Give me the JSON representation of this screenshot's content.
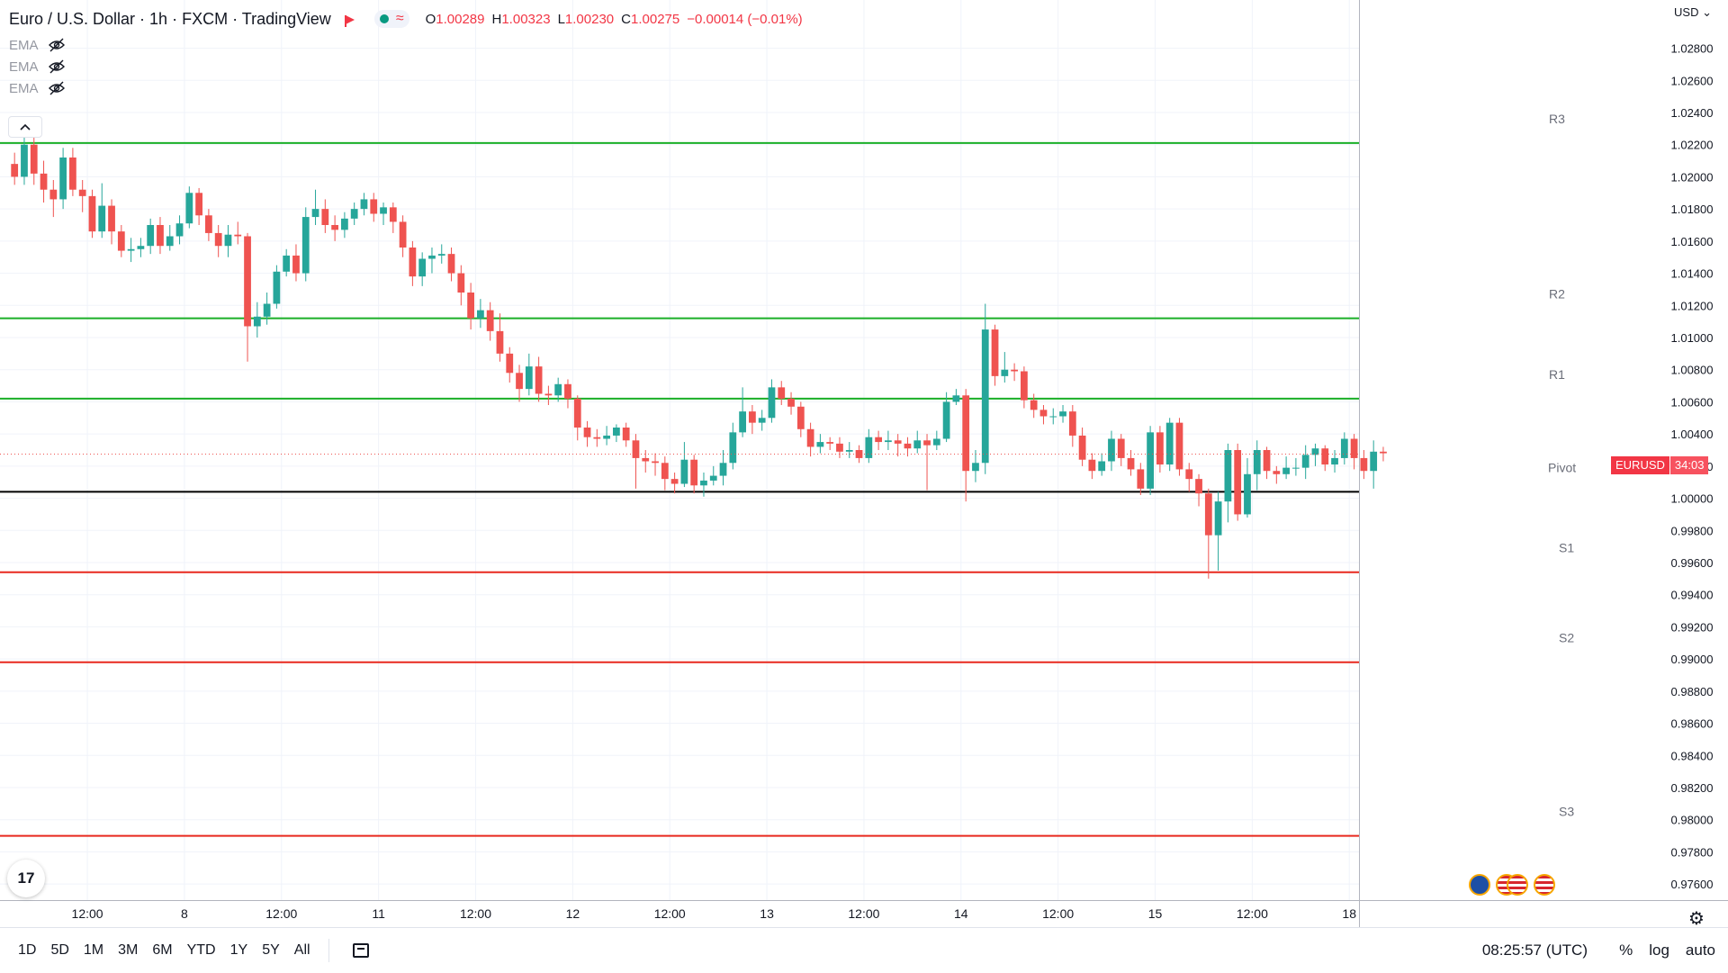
{
  "header": {
    "symbol": "Euro / U.S. Dollar",
    "interval": "1h",
    "exchange": "FXCM",
    "source": "TradingView",
    "ohlc": {
      "o_label": "O",
      "o": "1.00289",
      "h_label": "H",
      "h": "1.00323",
      "l_label": "L",
      "l": "1.00230",
      "c_label": "C",
      "c": "1.00275",
      "change": "−0.00014 (−0.01%)"
    }
  },
  "indicators": [
    "EMA",
    "EMA",
    "EMA"
  ],
  "currency_label": "USD",
  "price_badge": {
    "symbol": "EURUSD",
    "timer": "34:03"
  },
  "logo_text": "17",
  "bottom_bar": {
    "ranges": [
      "1D",
      "5D",
      "1M",
      "3M",
      "6M",
      "YTD",
      "1Y",
      "5Y",
      "All"
    ],
    "clock": "08:25:57 (UTC)",
    "options": [
      "%",
      "log",
      "auto"
    ]
  },
  "colors": {
    "up": "#26a69a",
    "down": "#ef5350",
    "resistance": "#1aaf27",
    "support": "#e8291e",
    "pivot": "#000000"
  },
  "chart_data": {
    "type": "candlestick",
    "title": "Euro / U.S. Dollar · 1h · FXCM",
    "y_axis": {
      "range": [
        0.975,
        1.031
      ],
      "ticks": [
        "1.02800",
        "1.02600",
        "1.02400",
        "1.02200",
        "1.02000",
        "1.01800",
        "1.01600",
        "1.01400",
        "1.01200",
        "1.01000",
        "1.00800",
        "1.00600",
        "1.00400",
        "1.00200",
        "1.00000",
        "0.99800",
        "0.99600",
        "0.99400",
        "0.99200",
        "0.99000",
        "0.98800",
        "0.98600",
        "0.98400",
        "0.98200",
        "0.98000",
        "0.97800",
        "0.97600"
      ],
      "position": "right"
    },
    "x_axis": {
      "range": [
        -9,
        131
      ],
      "ticks": [
        {
          "x": 0,
          "label": "12:00"
        },
        {
          "x": 10,
          "label": "8"
        },
        {
          "x": 20,
          "label": "12:00"
        },
        {
          "x": 30,
          "label": "11"
        },
        {
          "x": 40,
          "label": "12:00"
        },
        {
          "x": 50,
          "label": "12"
        },
        {
          "x": 60,
          "label": "12:00"
        },
        {
          "x": 70,
          "label": "13"
        },
        {
          "x": 80,
          "label": "12:00"
        },
        {
          "x": 90,
          "label": "14"
        },
        {
          "x": 100,
          "label": "12:00"
        },
        {
          "x": 110,
          "label": "15"
        },
        {
          "x": 120,
          "label": "12:00"
        },
        {
          "x": 130,
          "label": "18"
        }
      ]
    },
    "grid": true,
    "levels": [
      {
        "name": "R3",
        "value": 1.0221,
        "kind": "resistance"
      },
      {
        "name": "R2",
        "value": 1.0112,
        "kind": "resistance"
      },
      {
        "name": "R1",
        "value": 1.0062,
        "kind": "resistance"
      },
      {
        "name": "Pivot",
        "value": 1.0004,
        "kind": "pivot"
      },
      {
        "name": "S1",
        "value": 0.9954,
        "kind": "support"
      },
      {
        "name": "S2",
        "value": 0.9898,
        "kind": "support"
      },
      {
        "name": "S3",
        "value": 0.979,
        "kind": "support"
      }
    ],
    "last_price": 1.00275,
    "candles": [
      [
        -7.5,
        1.0208,
        1.02,
        1.0215,
        1.0195
      ],
      [
        -6.5,
        1.02,
        1.022,
        1.0225,
        1.0195
      ],
      [
        -5.5,
        1.022,
        1.0202,
        1.0225,
        1.0195
      ],
      [
        -4.5,
        1.0202,
        1.0192,
        1.021,
        1.0184
      ],
      [
        -3.5,
        1.0192,
        1.0186,
        1.0198,
        1.0175
      ],
      [
        -2.5,
        1.0186,
        1.0212,
        1.0218,
        1.018
      ],
      [
        -1.5,
        1.0212,
        1.0192,
        1.0218,
        1.0188
      ],
      [
        -0.5,
        1.0192,
        1.0188,
        1.0198,
        1.0178
      ],
      [
        0.5,
        1.0188,
        1.0166,
        1.0192,
        1.0162
      ],
      [
        1.5,
        1.0166,
        1.0182,
        1.0196,
        1.0162
      ],
      [
        2.5,
        1.0182,
        1.0166,
        1.0186,
        1.0158
      ],
      [
        3.5,
        1.0166,
        1.0154,
        1.017,
        1.015
      ],
      [
        4.5,
        1.0154,
        1.0155,
        1.0162,
        1.0147
      ],
      [
        5.5,
        1.0155,
        1.0157,
        1.0162,
        1.015
      ],
      [
        6.5,
        1.0157,
        1.017,
        1.0174,
        1.0152
      ],
      [
        7.5,
        1.017,
        1.0157,
        1.0175,
        1.0152
      ],
      [
        8.5,
        1.0157,
        1.0163,
        1.017,
        1.0154
      ],
      [
        9.5,
        1.0163,
        1.0171,
        1.0176,
        1.0158
      ],
      [
        10.5,
        1.0171,
        1.019,
        1.0194,
        1.0168
      ],
      [
        11.5,
        1.019,
        1.0176,
        1.0193,
        1.017
      ],
      [
        12.5,
        1.0176,
        1.0165,
        1.018,
        1.016
      ],
      [
        13.5,
        1.0165,
        1.0157,
        1.017,
        1.015
      ],
      [
        14.5,
        1.0157,
        1.0164,
        1.017,
        1.015
      ],
      [
        15.5,
        1.0164,
        1.0163,
        1.0172,
        1.0158
      ],
      [
        16.5,
        1.0163,
        1.0107,
        1.0165,
        1.0085
      ],
      [
        17.5,
        1.0107,
        1.0113,
        1.0122,
        1.01
      ],
      [
        18.5,
        1.0113,
        1.0121,
        1.0128,
        1.0108
      ],
      [
        19.5,
        1.0121,
        1.0141,
        1.0145,
        1.0118
      ],
      [
        20.5,
        1.0141,
        1.0151,
        1.0155,
        1.0138
      ],
      [
        21.5,
        1.0151,
        1.014,
        1.0158,
        1.0135
      ],
      [
        22.5,
        1.014,
        1.0175,
        1.0181,
        1.0135
      ],
      [
        23.5,
        1.0175,
        1.018,
        1.0192,
        1.017
      ],
      [
        24.5,
        1.018,
        1.017,
        1.0186,
        1.0165
      ],
      [
        25.5,
        1.017,
        1.0167,
        1.0176,
        1.016
      ],
      [
        26.5,
        1.0167,
        1.0174,
        1.0178,
        1.0162
      ],
      [
        27.5,
        1.0174,
        1.018,
        1.0184,
        1.017
      ],
      [
        28.5,
        1.018,
        1.0186,
        1.019,
        1.0176
      ],
      [
        29.5,
        1.0186,
        1.0177,
        1.019,
        1.0172
      ],
      [
        30.5,
        1.0177,
        1.0181,
        1.0184,
        1.017
      ],
      [
        31.5,
        1.0181,
        1.0172,
        1.0184,
        1.0165
      ],
      [
        32.5,
        1.0172,
        1.0156,
        1.0176,
        1.015
      ],
      [
        33.5,
        1.0156,
        1.0138,
        1.016,
        1.0132
      ],
      [
        34.5,
        1.0138,
        1.0149,
        1.0153,
        1.0132
      ],
      [
        35.5,
        1.0149,
        1.0151,
        1.0156,
        1.014
      ],
      [
        36.5,
        1.0151,
        1.0152,
        1.0158,
        1.0146
      ],
      [
        37.5,
        1.0152,
        1.014,
        1.0156,
        1.0135
      ],
      [
        38.5,
        1.014,
        1.0128,
        1.0145,
        1.012
      ],
      [
        39.5,
        1.0128,
        1.0112,
        1.0134,
        1.0105
      ],
      [
        40.5,
        1.0112,
        1.0117,
        1.0124,
        1.0106
      ],
      [
        41.5,
        1.0117,
        1.0104,
        1.0122,
        1.0098
      ],
      [
        42.5,
        1.0104,
        1.009,
        1.0115,
        1.0085
      ],
      [
        43.5,
        1.009,
        1.0078,
        1.0094,
        1.0072
      ],
      [
        44.5,
        1.0078,
        1.0068,
        1.0083,
        1.006
      ],
      [
        45.5,
        1.0068,
        1.0082,
        1.009,
        1.0064
      ],
      [
        46.5,
        1.0082,
        1.0065,
        1.0088,
        1.006
      ],
      [
        47.5,
        1.0065,
        1.0064,
        1.007,
        1.0058
      ],
      [
        48.5,
        1.0064,
        1.0071,
        1.0075,
        1.006
      ],
      [
        49.5,
        1.0071,
        1.0062,
        1.0074,
        1.0056
      ],
      [
        50.5,
        1.0062,
        1.0044,
        1.0064,
        1.0036
      ],
      [
        51.5,
        1.0044,
        1.0038,
        1.0048,
        1.0032
      ],
      [
        52.5,
        1.0038,
        1.0037,
        1.0043,
        1.0032
      ],
      [
        53.5,
        1.0037,
        1.0039,
        1.0045,
        1.0033
      ],
      [
        54.5,
        1.0039,
        1.0044,
        1.0046,
        1.0035
      ],
      [
        55.5,
        1.0044,
        1.0036,
        1.0047,
        1.0032
      ],
      [
        56.5,
        1.0036,
        1.0025,
        1.004,
        1.0006
      ],
      [
        57.5,
        1.0025,
        1.0023,
        1.003,
        1.0016
      ],
      [
        58.5,
        1.0023,
        1.0022,
        1.0028,
        1.0014
      ],
      [
        59.5,
        1.0022,
        1.0012,
        1.0026,
        1.0005
      ],
      [
        60.5,
        1.0012,
        1.0009,
        1.0016,
        1.0003
      ],
      [
        61.5,
        1.0009,
        1.0024,
        1.0035,
        1.0007
      ],
      [
        62.5,
        1.0024,
        1.0008,
        1.0027,
        1.0003
      ],
      [
        63.5,
        1.0008,
        1.0011,
        1.0016,
        1.0001
      ],
      [
        64.5,
        1.0011,
        1.0014,
        1.002,
        1.0008
      ],
      [
        65.5,
        1.0014,
        1.0022,
        1.003,
        1.0008
      ],
      [
        66.5,
        1.0022,
        1.0041,
        1.0047,
        1.0018
      ],
      [
        67.5,
        1.0041,
        1.0054,
        1.0069,
        1.0038
      ],
      [
        68.5,
        1.0054,
        1.0047,
        1.0058,
        1.004
      ],
      [
        69.5,
        1.0047,
        1.005,
        1.0055,
        1.0042
      ],
      [
        70.5,
        1.005,
        1.0069,
        1.0074,
        1.0047
      ],
      [
        71.5,
        1.0069,
        1.0062,
        1.0073,
        1.0058
      ],
      [
        72.5,
        1.0062,
        1.0057,
        1.0066,
        1.0052
      ],
      [
        73.5,
        1.0057,
        1.0043,
        1.006,
        1.0038
      ],
      [
        74.5,
        1.0043,
        1.0032,
        1.0047,
        1.0026
      ],
      [
        75.5,
        1.0032,
        1.0035,
        1.004,
        1.0028
      ],
      [
        76.5,
        1.0035,
        1.0034,
        1.0038,
        1.003
      ],
      [
        77.5,
        1.0034,
        1.0029,
        1.0038,
        1.0025
      ],
      [
        78.5,
        1.0029,
        1.003,
        1.0035,
        1.0025
      ],
      [
        79.5,
        1.003,
        1.0025,
        1.0033,
        1.0022
      ],
      [
        80.5,
        1.0025,
        1.0038,
        1.0043,
        1.0022
      ],
      [
        81.5,
        1.0038,
        1.0035,
        1.0042,
        1.003
      ],
      [
        82.5,
        1.0035,
        1.0036,
        1.0042,
        1.003
      ],
      [
        83.5,
        1.0036,
        1.0034,
        1.004,
        1.0026
      ],
      [
        84.5,
        1.0034,
        1.0031,
        1.0038,
        1.0026
      ],
      [
        85.5,
        1.0031,
        1.0036,
        1.0042,
        1.0028
      ],
      [
        86.5,
        1.0036,
        1.0033,
        1.004,
        1.0005
      ],
      [
        87.5,
        1.0033,
        1.0037,
        1.0042,
        1.003
      ],
      [
        88.5,
        1.0037,
        1.006,
        1.0066,
        1.0035
      ],
      [
        89.5,
        1.006,
        1.0064,
        1.0068,
        1.0058
      ],
      [
        90.5,
        1.0064,
        1.0017,
        1.0068,
        0.9998
      ],
      [
        91.5,
        1.0017,
        1.0022,
        1.003,
        1.001
      ],
      [
        92.5,
        1.0022,
        1.0105,
        1.0121,
        1.0015
      ],
      [
        93.5,
        1.0105,
        1.0076,
        1.0108,
        1.007
      ],
      [
        94.5,
        1.0076,
        1.008,
        1.0091,
        1.0072
      ],
      [
        95.5,
        1.008,
        1.0079,
        1.0084,
        1.0073
      ],
      [
        96.5,
        1.0079,
        1.0061,
        1.0082,
        1.0056
      ],
      [
        97.5,
        1.0061,
        1.0055,
        1.0065,
        1.005
      ],
      [
        98.5,
        1.0055,
        1.0051,
        1.0058,
        1.0046
      ],
      [
        99.5,
        1.0051,
        1.0051,
        1.0056,
        1.0046
      ],
      [
        100.5,
        1.0051,
        1.0054,
        1.0058,
        1.0047
      ],
      [
        101.5,
        1.0054,
        1.0039,
        1.0058,
        1.0032
      ],
      [
        102.5,
        1.0039,
        1.0024,
        1.0044,
        1.002
      ],
      [
        103.5,
        1.0024,
        1.0017,
        1.0028,
        1.0012
      ],
      [
        104.5,
        1.0017,
        1.0023,
        1.0028,
        1.0014
      ],
      [
        105.5,
        1.0023,
        1.0037,
        1.0042,
        1.0017
      ],
      [
        106.5,
        1.0037,
        1.0025,
        1.004,
        1.002
      ],
      [
        107.5,
        1.0025,
        1.0018,
        1.003,
        1.0014
      ],
      [
        108.5,
        1.0018,
        1.0006,
        1.0022,
        1.0002
      ],
      [
        109.5,
        1.0006,
        1.0041,
        1.0045,
        1.0002
      ],
      [
        110.5,
        1.0041,
        1.0021,
        1.0045,
        1.0016
      ],
      [
        111.5,
        1.0021,
        1.0047,
        1.005,
        1.0017
      ],
      [
        112.5,
        1.0047,
        1.0018,
        1.005,
        1.0014
      ],
      [
        113.5,
        1.0018,
        1.0012,
        1.0022,
        1.0004
      ],
      [
        114.5,
        1.0012,
        1.0003,
        1.0015,
        0.9995
      ],
      [
        115.5,
        1.0003,
        0.9977,
        1.0006,
        0.995
      ],
      [
        116.5,
        0.9977,
        0.9998,
        1.0004,
        0.9955
      ],
      [
        117.5,
        0.9998,
        1.003,
        1.0034,
        0.9985
      ],
      [
        118.5,
        1.003,
        0.999,
        1.0034,
        0.9986
      ],
      [
        119.5,
        0.999,
        1.0015,
        1.0025,
        0.9988
      ],
      [
        120.5,
        1.0015,
        1.003,
        1.0036,
        1.0005
      ],
      [
        121.5,
        1.003,
        1.0017,
        1.0032,
        1.0012
      ],
      [
        122.5,
        1.0017,
        1.0015,
        1.002,
        1.0009
      ],
      [
        123.5,
        1.0015,
        1.0019,
        1.0026,
        1.0012
      ],
      [
        124.5,
        1.0019,
        1.0019,
        1.0025,
        1.0014
      ],
      [
        125.5,
        1.0019,
        1.0027,
        1.0033,
        1.0012
      ],
      [
        126.5,
        1.0027,
        1.0031,
        1.0034,
        1.002
      ],
      [
        127.5,
        1.0031,
        1.0021,
        1.0033,
        1.0017
      ],
      [
        128.5,
        1.0021,
        1.0025,
        1.003,
        1.0016
      ],
      [
        129.5,
        1.0025,
        1.0037,
        1.0041,
        1.0021
      ],
      [
        130.5,
        1.0037,
        1.0025,
        1.004,
        1.0018
      ],
      [
        131.5,
        1.0025,
        1.0017,
        1.003,
        1.0012
      ],
      [
        132.5,
        1.0017,
        1.0029,
        1.0036,
        1.0006
      ],
      [
        133.5,
        1.0029,
        1.0028,
        1.0032,
        1.0023
      ]
    ]
  }
}
